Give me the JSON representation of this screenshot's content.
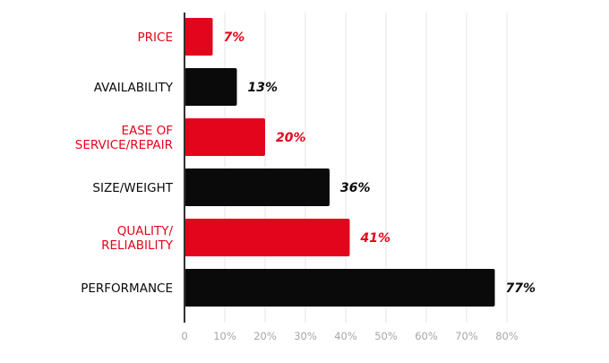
{
  "colors": {
    "red": "#e3051b",
    "black": "#0a0a0a",
    "grid": "#e6e6e6",
    "axis": "#333333",
    "tick_text": "#a6a6a6"
  },
  "chart_data": {
    "type": "bar",
    "orientation": "horizontal",
    "title": "",
    "xlabel": "",
    "ylabel": "",
    "xlim": [
      0,
      80
    ],
    "x_ticks": [
      "0",
      "10%",
      "20%",
      "30%",
      "40%",
      "50%",
      "60%",
      "70%",
      "80%"
    ],
    "grid": true,
    "categories": [
      "PRICE",
      "AVAILABILITY",
      "EASE OF\nSERVICE/REPAIR",
      "SIZE/WEIGHT",
      "QUALITY/\nRELIABILITY",
      "PERFORMANCE"
    ],
    "values": [
      7,
      13,
      20,
      36,
      41,
      77
    ],
    "value_labels": [
      "7%",
      "13%",
      "20%",
      "36%",
      "41%",
      "77%"
    ],
    "bar_colors": [
      "red",
      "black",
      "red",
      "black",
      "red",
      "black"
    ]
  }
}
